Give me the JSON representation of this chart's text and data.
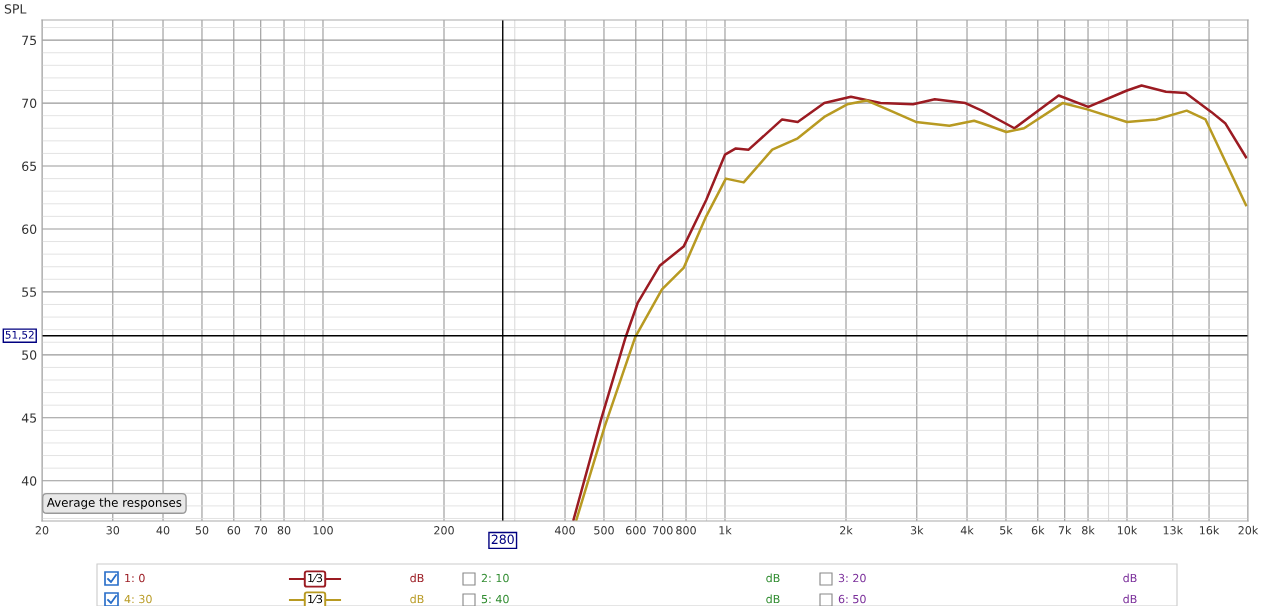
{
  "chart_data": {
    "type": "line",
    "ylabel": "SPL",
    "xlim": [
      20,
      20000
    ],
    "ylim": [
      36.8,
      76.6
    ],
    "xticks": [
      20,
      30,
      40,
      50,
      60,
      70,
      80,
      100,
      200,
      400,
      500,
      600,
      700,
      800,
      {
        "value": 1000,
        "label": "1k"
      },
      {
        "value": 2000,
        "label": "2k"
      },
      {
        "value": 3000,
        "label": "3k"
      },
      {
        "value": 4000,
        "label": "4k"
      },
      {
        "value": 5000,
        "label": "5k"
      },
      {
        "value": 6000,
        "label": "6k"
      },
      {
        "value": 7000,
        "label": "7k"
      },
      {
        "value": 8000,
        "label": "8k"
      },
      {
        "value": 10000,
        "label": "10k"
      },
      {
        "value": 13000,
        "label": "13k"
      },
      {
        "value": 16000,
        "label": "16k"
      },
      {
        "value": 20000,
        "label": "20k"
      }
    ],
    "yticks": [
      40,
      45,
      50,
      55,
      60,
      65,
      70,
      75
    ],
    "log": "x",
    "grid": true,
    "legend": "bottom",
    "marker": "none",
    "line_style": "solid",
    "series": [
      {
        "name": "1: 0",
        "color": "#9b1b22",
        "x": [
          420,
          491,
          566,
          606,
          689,
          789,
          898,
          1000,
          1064,
          1145,
          1387,
          1517,
          1766,
          2057,
          2437,
          2937,
          3326,
          3963,
          4354,
          5248,
          6761,
          8012,
          10000,
          10870,
          12500,
          14000,
          16200,
          17550,
          19770
        ],
        "values": [
          36.9,
          44.8,
          51.4,
          54.1,
          57.1,
          58.6,
          62.3,
          65.9,
          66.4,
          66.3,
          68.7,
          68.5,
          70.0,
          70.5,
          70.0,
          69.9,
          70.3,
          70.0,
          69.4,
          68.0,
          70.6,
          69.7,
          71.0,
          71.4,
          70.9,
          70.8,
          69.3,
          68.4,
          65.7
        ]
      },
      {
        "name": "4: 30",
        "color": "#b89a22",
        "x": [
          427,
          502,
          598,
          697,
          789,
          898,
          1005,
          1113,
          1311,
          1517,
          1766,
          2014,
          2255,
          2578,
          2985,
          3616,
          4165,
          4354,
          5010,
          5546,
          6914,
          7964,
          10000,
          11830,
          14080,
          15680,
          18150,
          19770
        ],
        "values": [
          36.9,
          44.3,
          51.4,
          55.2,
          56.9,
          61.0,
          64.0,
          63.7,
          66.3,
          67.2,
          68.9,
          69.9,
          70.2,
          69.4,
          68.5,
          68.2,
          68.6,
          68.4,
          67.7,
          68.0,
          70.0,
          69.5,
          68.5,
          68.7,
          69.4,
          68.7,
          64.4,
          61.9
        ]
      }
    ],
    "ref_lines": [
      {
        "axis": "x",
        "value": 280,
        "label": "280",
        "color": "#000000"
      },
      {
        "axis": "y",
        "value": 51.52,
        "label": "51,52",
        "color": "#000000"
      }
    ],
    "annotations": [
      "Average the responses",
      "1⁄3",
      "dB",
      "2: 10",
      "dB",
      "3: 20",
      "dB",
      "1⁄3",
      "dB",
      "5: 40",
      "dB",
      "6: 50",
      "dB"
    ]
  }
}
